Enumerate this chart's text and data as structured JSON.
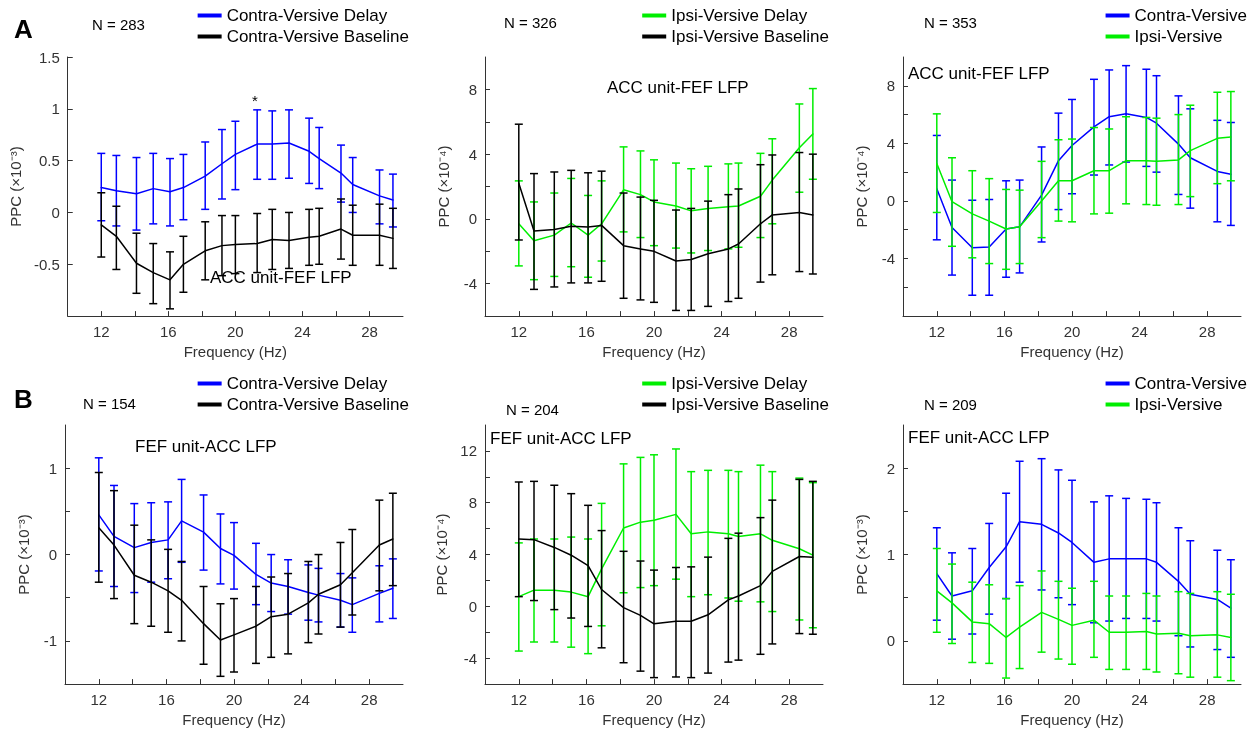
{
  "chart_data": [
    {
      "type": "line",
      "xlabel": "Frequency (Hz)",
      "ylabel": "PPC (×10⁻³)",
      "legend": "top right",
      "annotations": [
        "A",
        "N = 283",
        "ACC unit-FEF LFP",
        "*"
      ],
      "x": [
        12,
        12.9,
        14.1,
        15.1,
        16.1,
        16.9,
        18.2,
        19.2,
        20,
        21.3,
        22.2,
        23.2,
        24.4,
        25,
        26.3,
        27,
        28.6,
        29.4
      ],
      "xlim": [
        10,
        30
      ],
      "xticks": [
        12,
        {
          "value": 14,
          "label": null
        },
        16,
        {
          "value": 18,
          "label": null
        },
        20,
        {
          "value": 22,
          "label": null
        },
        24,
        {
          "value": 26,
          "label": null
        },
        28
      ],
      "ylim": [
        -1,
        1.5
      ],
      "yticks": [
        -0.5,
        0,
        0.5,
        1,
        1.5
      ],
      "series": [
        {
          "name": "Contra-Versive Delay",
          "color": "#0000ff",
          "values": [
            0.24,
            0.21,
            0.18,
            0.23,
            0.2,
            0.24,
            0.35,
            0.47,
            0.56,
            0.66,
            0.66,
            0.67,
            0.59,
            0.52,
            0.38,
            0.27,
            0.16,
            0.12
          ],
          "errors": [
            [
              -0.08,
              0.57
            ],
            [
              -0.13,
              0.55
            ],
            [
              -0.17,
              0.53
            ],
            [
              -0.11,
              0.57
            ],
            [
              -0.13,
              0.52
            ],
            [
              -0.07,
              0.56
            ],
            [
              0.03,
              0.68
            ],
            [
              0.13,
              0.8
            ],
            [
              0.22,
              0.88
            ],
            [
              0.32,
              0.99
            ],
            [
              0.32,
              0.98
            ],
            [
              0.33,
              0.99
            ],
            [
              0.28,
              0.91
            ],
            [
              0.23,
              0.82
            ],
            [
              0.1,
              0.65
            ],
            [
              0,
              0.53
            ],
            [
              -0.11,
              0.41
            ],
            [
              -0.14,
              0.37
            ]
          ]
        },
        {
          "name": "Contra-Versive Baseline",
          "color": "#000000",
          "values": [
            -0.12,
            -0.23,
            -0.49,
            -0.58,
            -0.65,
            -0.5,
            -0.37,
            -0.32,
            -0.31,
            -0.3,
            -0.26,
            -0.27,
            -0.24,
            -0.23,
            -0.16,
            -0.22,
            -0.22,
            -0.25
          ],
          "errors": [
            [
              -0.43,
              0.19
            ],
            [
              -0.55,
              0.06
            ],
            [
              -0.78,
              -0.2
            ],
            [
              -0.88,
              -0.3
            ],
            [
              -0.93,
              -0.38
            ],
            [
              -0.77,
              -0.23
            ],
            [
              -0.65,
              -0.09
            ],
            [
              -0.61,
              -0.03
            ],
            [
              -0.59,
              -0.03
            ],
            [
              -0.58,
              -0.01
            ],
            [
              -0.55,
              0.03
            ],
            [
              -0.54,
              0
            ],
            [
              -0.51,
              0.03
            ],
            [
              -0.5,
              0.04
            ],
            [
              -0.45,
              0.13
            ],
            [
              -0.51,
              0.07
            ],
            [
              -0.51,
              0.08
            ],
            [
              -0.54,
              0.04
            ]
          ]
        }
      ]
    },
    {
      "type": "line",
      "xlabel": "Frequency (Hz)",
      "ylabel": "PPC (×10⁻⁴)",
      "legend": "top right",
      "annotations": [
        "N = 326",
        "ACC unit-FEF LFP"
      ],
      "x": [
        12,
        12.9,
        14.1,
        15.1,
        16.1,
        16.9,
        18.2,
        19.2,
        20,
        21.3,
        22.2,
        23.2,
        24.4,
        25,
        26.3,
        27,
        28.6,
        29.4
      ],
      "xlim": [
        10,
        30
      ],
      "xticks": [
        12,
        {
          "value": 14,
          "label": null
        },
        16,
        {
          "value": 18,
          "label": null
        },
        20,
        {
          "value": 22,
          "label": null
        },
        24,
        {
          "value": 26,
          "label": null
        },
        28
      ],
      "ylim": [
        -6,
        10
      ],
      "yticks": [
        -4,
        {
          "value": -2,
          "label": null
        },
        0,
        {
          "value": 2,
          "label": null
        },
        4,
        {
          "value": 6,
          "label": null
        },
        8
      ],
      "series": [
        {
          "name": "Ipsi-Versive Delay",
          "color": "#00ee00",
          "values": [
            -0.3,
            -1.35,
            -1,
            -0.25,
            -1,
            -0.3,
            1.8,
            1.5,
            1.05,
            0.8,
            0.5,
            0.65,
            0.75,
            0.8,
            1.4,
            2.4,
            4.4,
            5.25
          ],
          "errors": [
            [
              -2.9,
              2.35
            ],
            [
              -3.75,
              1.05
            ],
            [
              -3.55,
              1.6
            ],
            [
              -2.95,
              2.5
            ],
            [
              -3.6,
              1.45
            ],
            [
              -2.6,
              2.35
            ],
            [
              -0.8,
              4.45
            ],
            [
              -1.15,
              4.2
            ],
            [
              -1.65,
              3.65
            ],
            [
              -1.8,
              3.45
            ],
            [
              -2.1,
              3.1
            ],
            [
              -1.95,
              3.25
            ],
            [
              -1.85,
              3.4
            ],
            [
              -1.75,
              3.45
            ],
            [
              -1.15,
              4.05
            ],
            [
              -0.3,
              4.95
            ],
            [
              1.65,
              7.1
            ],
            [
              2.45,
              8.05
            ]
          ]
        },
        {
          "name": "Ipsi-Versive Baseline",
          "color": "#000000",
          "values": [
            2.2,
            -0.75,
            -0.65,
            -0.45,
            -0.5,
            -0.4,
            -1.65,
            -1.85,
            -2,
            -2.6,
            -2.5,
            -2.15,
            -1.85,
            -1.55,
            -0.3,
            0.25,
            0.4,
            0.25
          ],
          "errors": [
            [
              -1.3,
              5.85
            ],
            [
              -4.35,
              2.8
            ],
            [
              -4.2,
              2.9
            ],
            [
              -3.95,
              3
            ],
            [
              -3.95,
              2.85
            ],
            [
              -3.85,
              2.95
            ],
            [
              -4.9,
              1.6
            ],
            [
              -5,
              1.35
            ],
            [
              -5.15,
              1.15
            ],
            [
              -5.65,
              0.55
            ],
            [
              -5.65,
              0.65
            ],
            [
              -5.4,
              1.1
            ],
            [
              -5.1,
              1.5
            ],
            [
              -4.9,
              1.85
            ],
            [
              -3.9,
              3.35
            ],
            [
              -3.45,
              3.95
            ],
            [
              -3.25,
              4.1
            ],
            [
              -3.4,
              4
            ]
          ]
        }
      ]
    },
    {
      "type": "line",
      "xlabel": "Frequency (Hz)",
      "ylabel": "PPC (×10⁻⁴)",
      "legend": "top right",
      "annotations": [
        "N = 353",
        "ACC unit-FEF LFP"
      ],
      "x": [
        12,
        12.9,
        14.1,
        15.1,
        16.1,
        16.9,
        18.2,
        19.2,
        20,
        21.3,
        22.2,
        23.2,
        24.4,
        25,
        26.3,
        27,
        28.6,
        29.4
      ],
      "xlim": [
        10,
        30
      ],
      "xticks": [
        12,
        {
          "value": 14,
          "label": null
        },
        16,
        {
          "value": 18,
          "label": null
        },
        20,
        {
          "value": 22,
          "label": null
        },
        24,
        {
          "value": 26,
          "label": null
        },
        28
      ],
      "ylim": [
        -8,
        10
      ],
      "yticks": [
        {
          "value": -6,
          "label": null
        },
        -4,
        {
          "value": -2,
          "label": null
        },
        0,
        {
          "value": 2,
          "label": null
        },
        4,
        {
          "value": 6,
          "label": null
        },
        8
      ],
      "series": [
        {
          "name": "Contra-Versive",
          "color": "#0000ff",
          "values": [
            0.85,
            -1.85,
            -3.25,
            -3.2,
            -1.95,
            -1.8,
            0.4,
            2.8,
            3.85,
            5.15,
            5.85,
            6.05,
            5.8,
            5.4,
            3.95,
            3,
            2.05,
            1.85
          ],
          "errors": [
            [
              -2.7,
              4.55
            ],
            [
              -5.15,
              1.45
            ],
            [
              -6.55,
              0.05
            ],
            [
              -6.55,
              0.1
            ],
            [
              -5.3,
              1.4
            ],
            [
              -5,
              1.45
            ],
            [
              -2.85,
              3.75
            ],
            [
              -0.6,
              6.1
            ],
            [
              0.5,
              7.05
            ],
            [
              1.8,
              8.45
            ],
            [
              2.5,
              9.1
            ],
            [
              2.7,
              9.4
            ],
            [
              2.4,
              9.15
            ],
            [
              2,
              8.7
            ],
            [
              0.45,
              7.3
            ],
            [
              -0.5,
              6.4
            ],
            [
              -1.45,
              5.6
            ],
            [
              -1.7,
              5.45
            ]
          ]
        },
        {
          "name": "Ipsi-Versive",
          "color": "#00ee00",
          "values": [
            2.6,
            -0.05,
            -0.9,
            -1.4,
            -1.95,
            -1.8,
            0,
            1.4,
            1.4,
            2.1,
            2.1,
            2.8,
            2.8,
            2.75,
            2.85,
            3.5,
            4.35,
            4.45
          ],
          "errors": [
            [
              -0.8,
              6.05
            ],
            [
              -3.15,
              3
            ],
            [
              -3.95,
              2.1
            ],
            [
              -4.35,
              1.55
            ],
            [
              -4.75,
              0.8
            ],
            [
              -4.35,
              0.75
            ],
            [
              -2.55,
              2.75
            ],
            [
              -1.4,
              4.25
            ],
            [
              -1.45,
              4.3
            ],
            [
              -0.9,
              5.1
            ],
            [
              -0.85,
              5
            ],
            [
              -0.2,
              5.85
            ],
            [
              -0.25,
              5.8
            ],
            [
              -0.3,
              5.75
            ],
            [
              -0.25,
              6
            ],
            [
              0.3,
              6.65
            ],
            [
              1.2,
              7.55
            ],
            [
              1.4,
              7.6
            ]
          ]
        }
      ]
    },
    {
      "type": "line",
      "xlabel": "Frequency (Hz)",
      "ylabel": "PPC (×10⁻³)",
      "legend": "top right",
      "annotations": [
        "B",
        "N = 154",
        "FEF unit-ACC LFP"
      ],
      "x": [
        12,
        12.9,
        14.1,
        15.1,
        16.1,
        16.9,
        18.2,
        19.2,
        20,
        21.3,
        22.2,
        23.2,
        24.4,
        25,
        26.3,
        27,
        28.6,
        29.4
      ],
      "xlim": [
        10,
        30
      ],
      "xticks": [
        12,
        {
          "value": 14,
          "label": null
        },
        16,
        {
          "value": 18,
          "label": null
        },
        20,
        {
          "value": 22,
          "label": null
        },
        24,
        {
          "value": 26,
          "label": null
        },
        28
      ],
      "ylim": [
        -1.5,
        1.5
      ],
      "yticks": [
        -1,
        {
          "value": -0.5,
          "label": null
        },
        0,
        {
          "value": 0.5,
          "label": null
        },
        1
      ],
      "series": [
        {
          "name": "Contra-Versive Delay",
          "color": "#0000ff",
          "values": [
            0.46,
            0.21,
            0.08,
            0.14,
            0.17,
            0.39,
            0.26,
            0.07,
            -0.01,
            -0.23,
            -0.33,
            -0.37,
            -0.44,
            -0.47,
            -0.53,
            -0.58,
            -0.45,
            -0.39
          ],
          "errors": [
            [
              -0.19,
              1.12
            ],
            [
              -0.37,
              0.8
            ],
            [
              -0.44,
              0.59
            ],
            [
              -0.32,
              0.6
            ],
            [
              -0.28,
              0.61
            ],
            [
              -0.09,
              0.87
            ],
            [
              -0.18,
              0.69
            ],
            [
              -0.34,
              0.47
            ],
            [
              -0.4,
              0.37
            ],
            [
              -0.58,
              0.13
            ],
            [
              -0.66,
              0
            ],
            [
              -0.69,
              -0.06
            ],
            [
              -0.76,
              -0.12
            ],
            [
              -0.78,
              -0.16
            ],
            [
              -0.84,
              -0.22
            ],
            [
              -0.9,
              -0.27
            ],
            [
              -0.78,
              -0.13
            ],
            [
              -0.74,
              -0.05
            ]
          ]
        },
        {
          "name": "Contra-Versive Baseline",
          "color": "#000000",
          "values": [
            0.31,
            0.11,
            -0.24,
            -0.32,
            -0.42,
            -0.53,
            -0.8,
            -0.99,
            -0.93,
            -0.83,
            -0.72,
            -0.69,
            -0.56,
            -0.46,
            -0.35,
            -0.21,
            0.11,
            0.18
          ],
          "errors": [
            [
              -0.32,
              0.95
            ],
            [
              -0.51,
              0.74
            ],
            [
              -0.8,
              0.34
            ],
            [
              -0.83,
              0.17
            ],
            [
              -0.9,
              0.06
            ],
            [
              -1,
              -0.08
            ],
            [
              -1.27,
              -0.37
            ],
            [
              -1.41,
              -0.57
            ],
            [
              -1.36,
              -0.51
            ],
            [
              -1.26,
              -0.37
            ],
            [
              -1.19,
              -0.26
            ],
            [
              -1.15,
              -0.22
            ],
            [
              -1.02,
              -0.08
            ],
            [
              -0.92,
              0
            ],
            [
              -0.84,
              0.14
            ],
            [
              -0.7,
              0.29
            ],
            [
              -0.42,
              0.63
            ],
            [
              -0.36,
              0.71
            ]
          ]
        }
      ]
    },
    {
      "type": "line",
      "xlabel": "Frequency (Hz)",
      "ylabel": "PPC (×10⁻⁴)",
      "legend": "top right",
      "annotations": [
        "N = 204",
        "FEF unit-ACC LFP"
      ],
      "x": [
        12,
        12.9,
        14.1,
        15.1,
        16.1,
        16.9,
        18.2,
        19.2,
        20,
        21.3,
        22.2,
        23.2,
        24.4,
        25,
        26.3,
        27,
        28.6,
        29.4
      ],
      "xlim": [
        10,
        30
      ],
      "xticks": [
        12,
        {
          "value": 14,
          "label": null
        },
        16,
        {
          "value": 18,
          "label": null
        },
        20,
        {
          "value": 22,
          "label": null
        },
        24,
        {
          "value": 26,
          "label": null
        },
        28
      ],
      "ylim": [
        -6,
        14
      ],
      "yticks": [
        -4,
        {
          "value": -2,
          "label": null
        },
        0,
        {
          "value": 2,
          "label": null
        },
        4,
        {
          "value": 6,
          "label": null
        },
        8,
        {
          "value": 10,
          "label": null
        },
        12
      ],
      "series": [
        {
          "name": "Ipsi-Versive Delay",
          "color": "#00ee00",
          "values": [
            0.75,
            1.25,
            1.25,
            1.1,
            0.75,
            2.9,
            6.05,
            6.5,
            6.65,
            7.1,
            5.6,
            5.75,
            5.6,
            5.4,
            5.6,
            5.1,
            4.45,
            3.95
          ],
          "errors": [
            [
              -3.45,
              4.9
            ],
            [
              -2.75,
              5.2
            ],
            [
              -2.75,
              5.2
            ],
            [
              -3.15,
              5.35
            ],
            [
              -3.65,
              5.2
            ],
            [
              -1.5,
              7.95
            ],
            [
              1.05,
              11
            ],
            [
              1.45,
              11.5
            ],
            [
              1.6,
              11.7
            ],
            [
              2.1,
              12.15
            ],
            [
              0.75,
              10.4
            ],
            [
              0.9,
              10.5
            ],
            [
              0.65,
              10.5
            ],
            [
              0.4,
              10.4
            ],
            [
              0.35,
              10.9
            ],
            [
              -0.4,
              10.4
            ],
            [
              -1.05,
              9.9
            ],
            [
              -1.65,
              9.55
            ]
          ]
        },
        {
          "name": "Ipsi-Versive Baseline",
          "color": "#000000",
          "values": [
            5.2,
            5.15,
            4.55,
            3.95,
            3.15,
            1.3,
            -0.1,
            -0.7,
            -1.35,
            -1.15,
            -1.15,
            -0.65,
            0.5,
            0.8,
            1.6,
            2.7,
            3.85,
            3.8
          ],
          "errors": [
            [
              0.75,
              9.6
            ],
            [
              0.45,
              9.65
            ],
            [
              -0.25,
              9.35
            ],
            [
              -0.9,
              8.7
            ],
            [
              -1.55,
              7.8
            ],
            [
              -3.2,
              5.85
            ],
            [
              -4.35,
              4.25
            ],
            [
              -5,
              3.5
            ],
            [
              -5.5,
              2.8
            ],
            [
              -5.45,
              3
            ],
            [
              -5.5,
              3.05
            ],
            [
              -5.15,
              3.8
            ],
            [
              -4.3,
              5.25
            ],
            [
              -4.15,
              5.65
            ],
            [
              -3.7,
              6.85
            ],
            [
              -2.9,
              8.2
            ],
            [
              -2.1,
              9.8
            ],
            [
              -2.15,
              9.65
            ]
          ]
        }
      ]
    },
    {
      "type": "line",
      "xlabel": "Frequency (Hz)",
      "ylabel": "PPC (×10⁻³)",
      "legend": "top right",
      "annotations": [
        "N = 209",
        "FEF unit-ACC LFP"
      ],
      "x": [
        12,
        12.9,
        14.1,
        15.1,
        16.1,
        16.9,
        18.2,
        19.2,
        20,
        21.3,
        22.2,
        23.2,
        24.4,
        25,
        26.3,
        27,
        28.6,
        29.4
      ],
      "xlim": [
        10,
        30
      ],
      "xticks": [
        12,
        {
          "value": 14,
          "label": null
        },
        16,
        {
          "value": 18,
          "label": null
        },
        20,
        {
          "value": 22,
          "label": null
        },
        24,
        {
          "value": 26,
          "label": null
        },
        28
      ],
      "ylim": [
        -0.5,
        2.5
      ],
      "yticks": [
        0,
        {
          "value": 0.5,
          "label": null
        },
        1,
        {
          "value": 1.5,
          "label": null
        },
        2
      ],
      "series": [
        {
          "name": "Contra-Versive",
          "color": "#0000ff",
          "values": [
            0.78,
            0.52,
            0.58,
            0.85,
            1.09,
            1.38,
            1.35,
            1.25,
            1.14,
            0.91,
            0.95,
            0.95,
            0.95,
            0.91,
            0.69,
            0.54,
            0.48,
            0.38
          ],
          "errors": [
            [
              0.24,
              1.31
            ],
            [
              0.02,
              1.02
            ],
            [
              0.08,
              1.07
            ],
            [
              0.31,
              1.36
            ],
            [
              0.49,
              1.71
            ],
            [
              0.68,
              2.08
            ],
            [
              0.59,
              2.11
            ],
            [
              0.5,
              1.98
            ],
            [
              0.42,
              1.86
            ],
            [
              0.21,
              1.61
            ],
            [
              0.23,
              1.68
            ],
            [
              0.26,
              1.65
            ],
            [
              0.26,
              1.64
            ],
            [
              0.23,
              1.6
            ],
            [
              0.06,
              1.31
            ],
            [
              -0.07,
              1.16
            ],
            [
              -0.1,
              1.05
            ],
            [
              -0.19,
              0.94
            ]
          ]
        },
        {
          "name": "Ipsi-Versive",
          "color": "#00ee00",
          "values": [
            0.58,
            0.44,
            0.22,
            0.2,
            0.04,
            0.16,
            0.33,
            0.25,
            0.18,
            0.24,
            0.1,
            0.1,
            0.11,
            0.08,
            0.09,
            0.06,
            0.07,
            0.04
          ],
          "errors": [
            [
              0.1,
              1.07
            ],
            [
              -0.03,
              0.89
            ],
            [
              -0.25,
              0.68
            ],
            [
              -0.26,
              0.65
            ],
            [
              -0.43,
              0.49
            ],
            [
              -0.32,
              0.64
            ],
            [
              -0.13,
              0.81
            ],
            [
              -0.21,
              0.69
            ],
            [
              -0.27,
              0.61
            ],
            [
              -0.19,
              0.69
            ],
            [
              -0.33,
              0.52
            ],
            [
              -0.33,
              0.52
            ],
            [
              -0.33,
              0.55
            ],
            [
              -0.36,
              0.52
            ],
            [
              -0.38,
              0.57
            ],
            [
              -0.42,
              0.55
            ],
            [
              -0.42,
              0.57
            ],
            [
              -0.46,
              0.54
            ]
          ]
        }
      ]
    }
  ]
}
